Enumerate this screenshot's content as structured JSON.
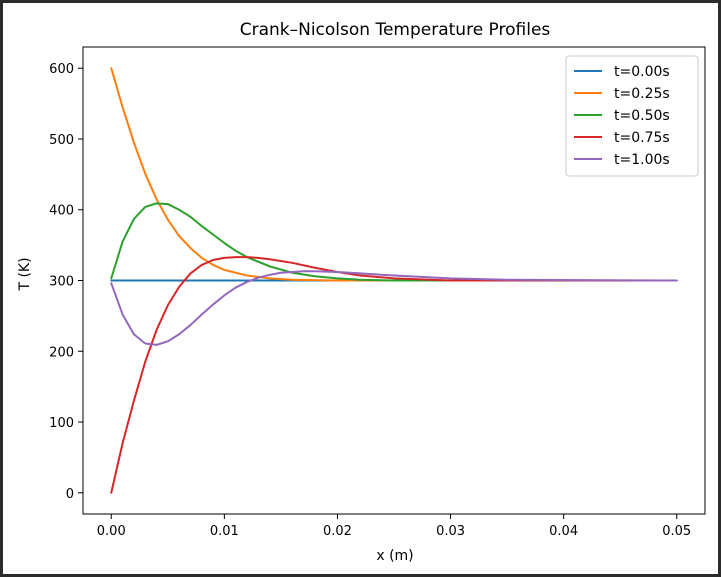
{
  "chart_data": {
    "type": "line",
    "title": "Crank–Nicolson Temperature Profiles",
    "xlabel": "x (m)",
    "ylabel": "T (K)",
    "xlim": [
      -0.0025,
      0.0525
    ],
    "ylim": [
      -30,
      630
    ],
    "xticks": [
      0.0,
      0.01,
      0.02,
      0.03,
      0.04,
      0.05
    ],
    "xtick_labels": [
      "0.00",
      "0.01",
      "0.02",
      "0.03",
      "0.04",
      "0.05"
    ],
    "yticks": [
      0,
      100,
      200,
      300,
      400,
      500,
      600
    ],
    "ytick_labels": [
      "0",
      "100",
      "200",
      "300",
      "400",
      "500",
      "600"
    ],
    "grid": false,
    "legend_position": "top-right",
    "series": [
      {
        "name": "t=0.00s",
        "color": "#1f77b4",
        "x": [
          0.0,
          0.05
        ],
        "y": [
          300,
          300
        ]
      },
      {
        "name": "t=0.25s",
        "color": "#ff7f0e",
        "x": [
          0.0,
          0.001,
          0.002,
          0.003,
          0.004,
          0.005,
          0.006,
          0.007,
          0.008,
          0.009,
          0.01,
          0.012,
          0.014,
          0.016,
          0.02,
          0.03,
          0.05
        ],
        "y": [
          600,
          545,
          495,
          451,
          415,
          386,
          363,
          346,
          332,
          322,
          315,
          307,
          303,
          301,
          300,
          300,
          300
        ]
      },
      {
        "name": "t=0.50s",
        "color": "#2ca02c",
        "x": [
          0.0,
          0.001,
          0.002,
          0.003,
          0.004,
          0.005,
          0.006,
          0.007,
          0.008,
          0.009,
          0.01,
          0.011,
          0.012,
          0.014,
          0.016,
          0.018,
          0.02,
          0.022,
          0.025,
          0.03,
          0.05
        ],
        "y": [
          303,
          355,
          387,
          404,
          409,
          408,
          400,
          390,
          377,
          365,
          353,
          342,
          333,
          320,
          311,
          306,
          303,
          301,
          300,
          300,
          300
        ]
      },
      {
        "name": "t=0.75s",
        "color": "#d62728",
        "x": [
          0.0,
          0.001,
          0.002,
          0.003,
          0.004,
          0.005,
          0.006,
          0.007,
          0.008,
          0.009,
          0.01,
          0.011,
          0.012,
          0.013,
          0.014,
          0.016,
          0.018,
          0.02,
          0.022,
          0.025,
          0.03,
          0.035,
          0.05
        ],
        "y": [
          0,
          70,
          130,
          185,
          230,
          265,
          291,
          310,
          322,
          329,
          332,
          333,
          333,
          332,
          330,
          325,
          318,
          312,
          307,
          303,
          300,
          300,
          300
        ]
      },
      {
        "name": "t=1.00s",
        "color": "#9467bd",
        "x": [
          0.0,
          0.001,
          0.002,
          0.003,
          0.004,
          0.005,
          0.006,
          0.007,
          0.008,
          0.009,
          0.01,
          0.011,
          0.012,
          0.013,
          0.014,
          0.015,
          0.016,
          0.017,
          0.018,
          0.02,
          0.022,
          0.025,
          0.03,
          0.035,
          0.05
        ],
        "y": [
          296,
          252,
          224,
          211,
          209,
          214,
          224,
          237,
          252,
          266,
          279,
          290,
          298,
          304,
          308,
          311,
          312,
          313,
          313,
          312,
          310,
          307,
          303,
          301,
          300
        ]
      }
    ]
  }
}
